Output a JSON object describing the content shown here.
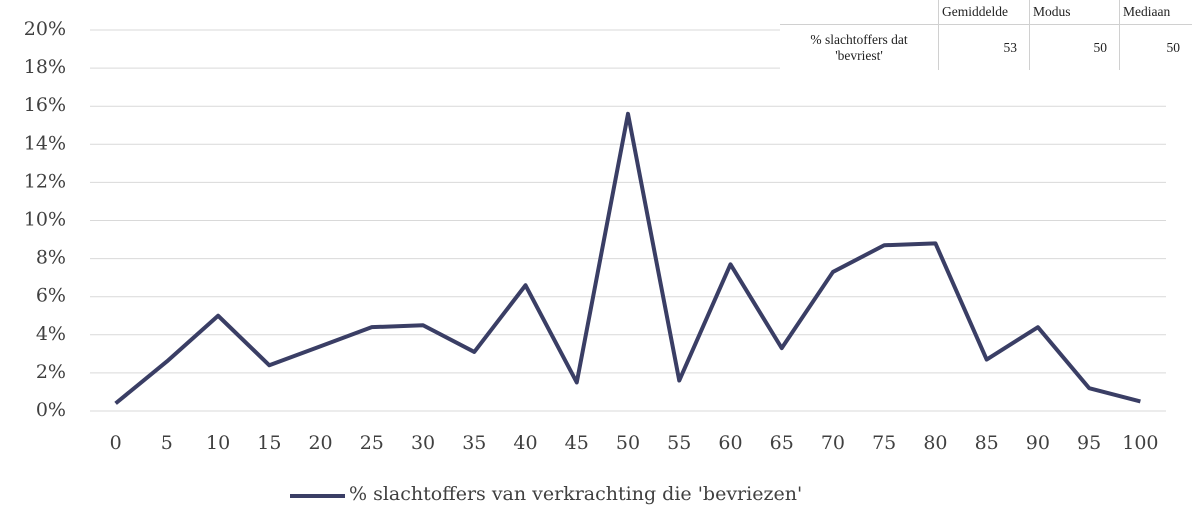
{
  "chart_data": {
    "type": "line",
    "categories": [
      "0",
      "5",
      "10",
      "15",
      "20",
      "25",
      "30",
      "35",
      "40",
      "45",
      "50",
      "55",
      "60",
      "65",
      "70",
      "75",
      "80",
      "85",
      "90",
      "95",
      "100"
    ],
    "series": [
      {
        "name": "% slachtoffers van verkrachting die 'bevriezen'",
        "color": "#3a3e65",
        "values": [
          0.4,
          2.6,
          5.0,
          2.4,
          3.4,
          4.4,
          4.5,
          3.1,
          6.6,
          1.5,
          15.6,
          1.6,
          7.7,
          3.3,
          7.3,
          8.7,
          8.8,
          2.7,
          4.4,
          1.2,
          0.5
        ]
      }
    ],
    "ylim": [
      0,
      20
    ],
    "yticks": [
      {
        "value": 0,
        "label": "0%"
      },
      {
        "value": 2,
        "label": "2%"
      },
      {
        "value": 4,
        "label": "4%"
      },
      {
        "value": 6,
        "label": "6%"
      },
      {
        "value": 8,
        "label": "8%"
      },
      {
        "value": 10,
        "label": "10%"
      },
      {
        "value": 12,
        "label": "12%"
      },
      {
        "value": 14,
        "label": "14%"
      },
      {
        "value": 16,
        "label": "16%"
      },
      {
        "value": 18,
        "label": "18%"
      },
      {
        "value": 20,
        "label": "20%"
      }
    ],
    "grid": true,
    "legend": "bottom",
    "table": {
      "columns": [
        "Gemiddelde",
        "Modus",
        "Mediaan"
      ],
      "row_label": "% slachtoffers dat 'bevriest'",
      "values": [
        53,
        50,
        50
      ]
    }
  }
}
